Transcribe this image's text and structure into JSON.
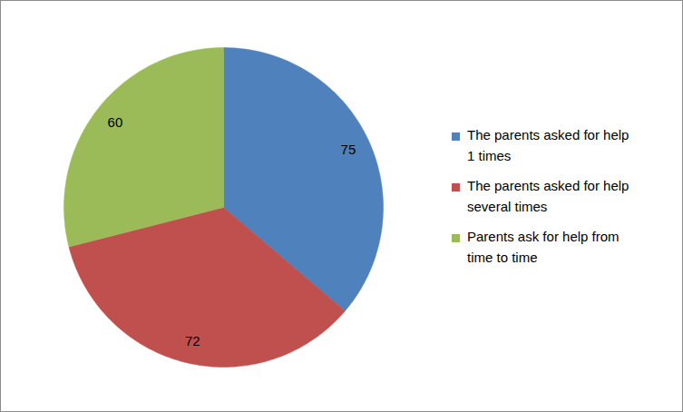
{
  "chart_data": {
    "type": "pie",
    "categories": [
      "The parents asked for help 1 times",
      "The parents asked for help several times",
      "Parents ask for help from time to time"
    ],
    "values": [
      75,
      72,
      60
    ],
    "colors": [
      "#4f81bd",
      "#c0504d",
      "#9bbb59"
    ],
    "data_labels": true,
    "legend": "right"
  }
}
